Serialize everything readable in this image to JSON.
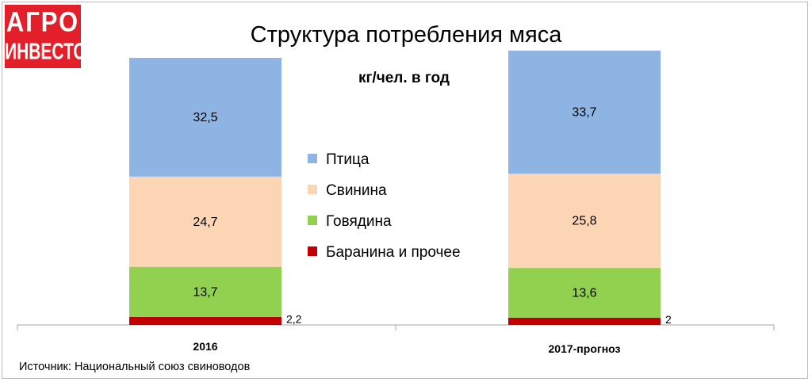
{
  "logo": {
    "line1": "АГРО",
    "line2": "ИНВЕСТОР"
  },
  "source": "Источник: Национальный союз свиноводов",
  "colors": {
    "ptitsa": "#8eb4e3",
    "svinina": "#fcd5b5",
    "govyadina": "#92d050",
    "baranina": "#c00000"
  },
  "chart_data": {
    "type": "bar",
    "stacked": true,
    "title": "Структура потребления мяса",
    "subtitle": "кг/чел. в год",
    "categories": [
      "2016",
      "2017-прогноз"
    ],
    "series": [
      {
        "name": "Баранина и прочее",
        "values": [
          2.2,
          2
        ],
        "labels": [
          "2,2",
          "2"
        ],
        "color": "#c00000"
      },
      {
        "name": "Говядина",
        "values": [
          13.7,
          13.6
        ],
        "labels": [
          "13,7",
          "13,6"
        ],
        "color": "#92d050"
      },
      {
        "name": "Свинина",
        "values": [
          24.7,
          25.8
        ],
        "labels": [
          "24,7",
          "25,8"
        ],
        "color": "#fcd5b5"
      },
      {
        "name": "Птица",
        "values": [
          32.5,
          33.7
        ],
        "labels": [
          "32,5",
          "33,7"
        ],
        "color": "#8eb4e3"
      }
    ],
    "legend": {
      "position": "center",
      "order": [
        "Птица",
        "Свинина",
        "Говядина",
        "Баранина и прочее"
      ]
    },
    "grid": false
  }
}
